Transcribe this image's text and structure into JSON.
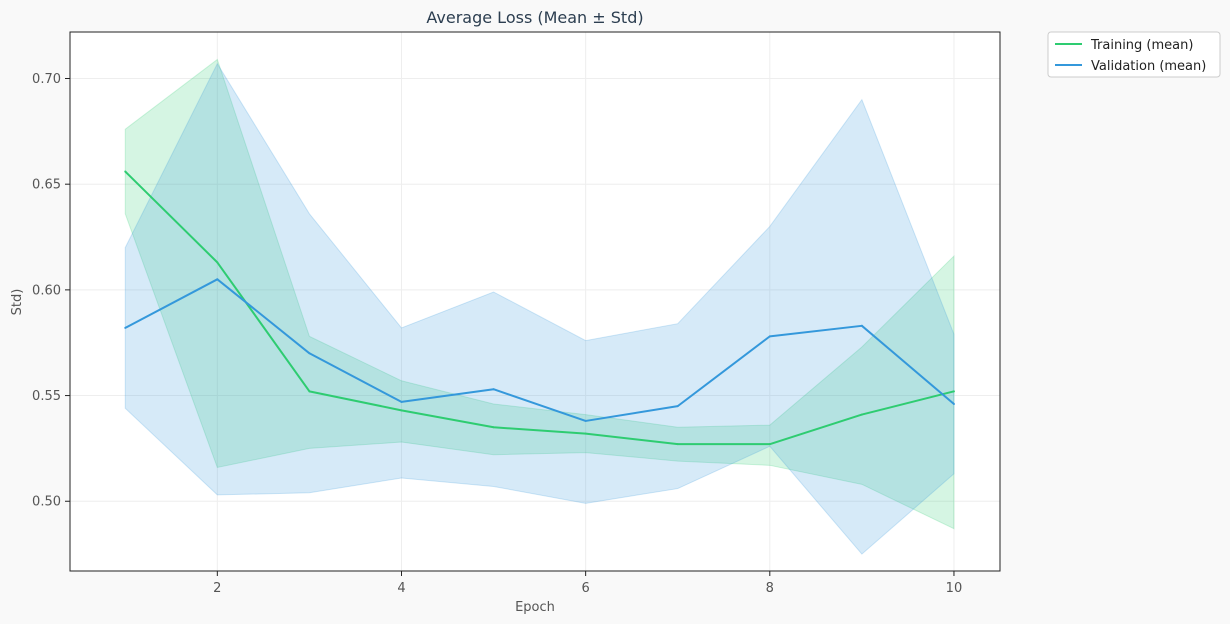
{
  "chart_data": {
    "type": "line",
    "title": "Average Loss (Mean ± Std)",
    "xlabel": "Epoch",
    "ylabel": "Std)",
    "x": [
      1,
      2,
      3,
      4,
      5,
      6,
      7,
      8,
      9,
      10
    ],
    "xlim": [
      0.4,
      10.5
    ],
    "ylim": [
      0.467,
      0.722
    ],
    "xticks": [
      2,
      4,
      6,
      8,
      10
    ],
    "yticks": [
      0.5,
      0.55,
      0.6,
      0.65,
      0.7
    ],
    "ytick_labels": [
      "0.50",
      "0.55",
      "0.60",
      "0.65",
      "0.70"
    ],
    "grid": true,
    "legend_position": "outside-top-right",
    "series": [
      {
        "name": "Training (mean)",
        "color": "#2ecc71",
        "values": [
          0.656,
          0.613,
          0.552,
          0.543,
          0.535,
          0.532,
          0.527,
          0.527,
          0.541,
          0.552
        ],
        "upper": [
          0.676,
          0.709,
          0.578,
          0.557,
          0.546,
          0.541,
          0.535,
          0.536,
          0.573,
          0.616
        ],
        "lower": [
          0.636,
          0.516,
          0.525,
          0.528,
          0.522,
          0.523,
          0.519,
          0.517,
          0.508,
          0.487
        ]
      },
      {
        "name": "Validation (mean)",
        "color": "#3498db",
        "values": [
          0.582,
          0.605,
          0.57,
          0.547,
          0.553,
          0.538,
          0.545,
          0.578,
          0.583,
          0.546
        ],
        "upper": [
          0.62,
          0.707,
          0.636,
          0.582,
          0.599,
          0.576,
          0.584,
          0.63,
          0.69,
          0.579
        ],
        "lower": [
          0.544,
          0.503,
          0.504,
          0.511,
          0.507,
          0.499,
          0.506,
          0.526,
          0.475,
          0.513
        ]
      }
    ]
  }
}
